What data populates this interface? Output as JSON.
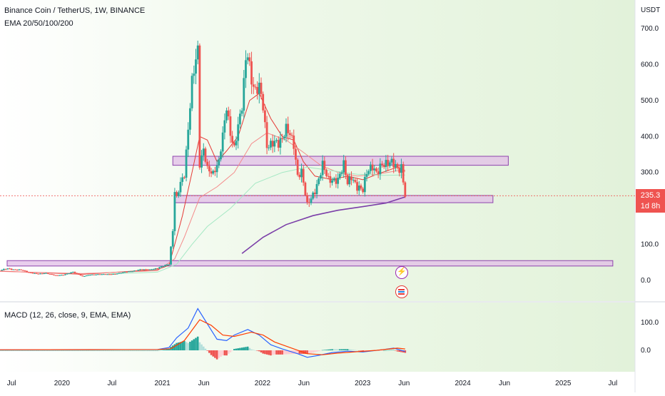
{
  "header": {
    "symbol": "Binance Coin / TetherUS, 1W, BINANCE",
    "indicator": "EMA 20/50/100/200",
    "macd_label": "MACD (12, 26, close, 9, EMA, EMA)"
  },
  "price_axis": {
    "currency": "USDT",
    "last_price": "235.3",
    "countdown": "1d 8h"
  },
  "colors": {
    "up": "#26a69a",
    "down": "#ef5350",
    "ema20": "#e53935",
    "ema50": "#f48a8a",
    "ema100": "#a5e8c4",
    "ema200": "#7b3fa8",
    "zone_fill": "#e1bee7",
    "zone_stroke": "#8e44ad",
    "macd": "#2962ff",
    "signal": "#ff3d00",
    "bg": "#e8f5e1"
  },
  "chart_data": [
    {
      "type": "candlestick",
      "title": "Binance Coin / TetherUS, 1W, BINANCE",
      "ylabel": "USDT",
      "ylim": [
        -30,
        740
      ],
      "xlim": [
        "2019-05-20",
        "2025-09-20"
      ],
      "y_ticks": [
        0,
        100,
        200,
        300,
        400,
        500,
        600,
        700
      ],
      "y_tick_labels": [
        "0.0",
        "100.0",
        "",
        "300.0",
        "400.0",
        "500.0",
        "600.0",
        "700.0"
      ],
      "x_tick_labels": [
        {
          "date": "2019-07-01",
          "label": "Jul"
        },
        {
          "date": "2020-01-01",
          "label": "2020"
        },
        {
          "date": "2020-07-01",
          "label": "Jul"
        },
        {
          "date": "2021-01-01",
          "label": "2021"
        },
        {
          "date": "2021-06-01",
          "label": "Jun"
        },
        {
          "date": "2022-01-01",
          "label": "2022"
        },
        {
          "date": "2022-06-01",
          "label": "Jun"
        },
        {
          "date": "2023-01-01",
          "label": "2023"
        },
        {
          "date": "2023-06-01",
          "label": "Jun"
        },
        {
          "date": "2024-01-01",
          "label": "2024"
        },
        {
          "date": "2024-06-01",
          "label": "Jun"
        },
        {
          "date": "2025-01-01",
          "label": "2025"
        },
        {
          "date": "2025-07-01",
          "label": "Jul"
        }
      ],
      "close_path": [
        [
          "2019-05-20",
          28
        ],
        [
          "2019-06-17",
          33
        ],
        [
          "2019-07-08",
          30
        ],
        [
          "2019-08-05",
          29
        ],
        [
          "2019-09-02",
          22
        ],
        [
          "2019-10-07",
          18
        ],
        [
          "2019-11-04",
          20
        ],
        [
          "2019-12-09",
          14
        ],
        [
          "2020-01-06",
          15
        ],
        [
          "2020-02-10",
          24
        ],
        [
          "2020-03-16",
          11
        ],
        [
          "2020-04-13",
          16
        ],
        [
          "2020-05-18",
          17
        ],
        [
          "2020-06-15",
          17
        ],
        [
          "2020-07-13",
          18
        ],
        [
          "2020-08-17",
          23
        ],
        [
          "2020-09-14",
          26
        ],
        [
          "2020-10-12",
          30
        ],
        [
          "2020-11-16",
          30
        ],
        [
          "2020-12-14",
          34
        ],
        [
          "2021-01-04",
          40
        ],
        [
          "2021-01-25",
          45
        ],
        [
          "2021-02-08",
          140
        ],
        [
          "2021-02-15",
          250
        ],
        [
          "2021-02-22",
          230
        ],
        [
          "2021-03-08",
          270
        ],
        [
          "2021-03-22",
          290
        ],
        [
          "2021-04-05",
          420
        ],
        [
          "2021-04-19",
          560
        ],
        [
          "2021-05-03",
          620
        ],
        [
          "2021-05-10",
          640
        ],
        [
          "2021-05-17",
          320
        ],
        [
          "2021-05-31",
          360
        ],
        [
          "2021-06-14",
          310
        ],
        [
          "2021-07-05",
          300
        ],
        [
          "2021-07-26",
          330
        ],
        [
          "2021-08-09",
          400
        ],
        [
          "2021-08-23",
          480
        ],
        [
          "2021-09-06",
          410
        ],
        [
          "2021-09-20",
          370
        ],
        [
          "2021-10-04",
          430
        ],
        [
          "2021-10-18",
          480
        ],
        [
          "2021-11-01",
          610
        ],
        [
          "2021-11-08",
          630
        ],
        [
          "2021-11-22",
          560
        ],
        [
          "2021-12-06",
          530
        ],
        [
          "2021-12-20",
          540
        ],
        [
          "2022-01-03",
          480
        ],
        [
          "2022-01-17",
          370
        ],
        [
          "2022-01-31",
          380
        ],
        [
          "2022-02-14",
          390
        ],
        [
          "2022-02-28",
          380
        ],
        [
          "2022-03-14",
          390
        ],
        [
          "2022-03-28",
          420
        ],
        [
          "2022-04-11",
          410
        ],
        [
          "2022-04-25",
          380
        ],
        [
          "2022-05-09",
          290
        ],
        [
          "2022-05-23",
          300
        ],
        [
          "2022-06-13",
          210
        ],
        [
          "2022-06-27",
          230
        ],
        [
          "2022-07-11",
          250
        ],
        [
          "2022-07-25",
          280
        ],
        [
          "2022-08-08",
          320
        ],
        [
          "2022-08-29",
          280
        ],
        [
          "2022-09-12",
          280
        ],
        [
          "2022-10-03",
          280
        ],
        [
          "2022-10-24",
          320
        ],
        [
          "2022-11-07",
          270
        ],
        [
          "2022-11-21",
          290
        ],
        [
          "2022-12-12",
          260
        ],
        [
          "2023-01-02",
          250
        ],
        [
          "2023-01-16",
          300
        ],
        [
          "2023-02-06",
          320
        ],
        [
          "2023-02-20",
          300
        ],
        [
          "2023-03-13",
          320
        ],
        [
          "2023-03-27",
          320
        ],
        [
          "2023-04-10",
          330
        ],
        [
          "2023-04-24",
          330
        ],
        [
          "2023-05-08",
          310
        ],
        [
          "2023-05-22",
          310
        ],
        [
          "2023-06-05",
          235.3
        ]
      ],
      "ema_series": [
        {
          "name": "EMA 20",
          "points": [
            [
              "2019-05-20",
              26
            ],
            [
              "2020-03-16",
              17
            ],
            [
              "2020-12-14",
              30
            ],
            [
              "2021-01-25",
              42
            ],
            [
              "2021-02-15",
              100
            ],
            [
              "2021-03-15",
              180
            ],
            [
              "2021-04-19",
              300
            ],
            [
              "2021-05-17",
              400
            ],
            [
              "2021-06-14",
              390
            ],
            [
              "2021-07-19",
              330
            ],
            [
              "2021-08-23",
              360
            ],
            [
              "2021-10-04",
              400
            ],
            [
              "2021-11-15",
              500
            ],
            [
              "2021-12-20",
              520
            ],
            [
              "2022-01-31",
              450
            ],
            [
              "2022-03-14",
              400
            ],
            [
              "2022-04-25",
              390
            ],
            [
              "2022-05-30",
              330
            ],
            [
              "2022-07-11",
              290
            ],
            [
              "2022-09-12",
              280
            ],
            [
              "2022-11-07",
              290
            ],
            [
              "2023-01-02",
              280
            ],
            [
              "2023-03-13",
              300
            ],
            [
              "2023-05-08",
              315
            ],
            [
              "2023-06-05",
              305
            ]
          ]
        },
        {
          "name": "EMA 50",
          "points": [
            [
              "2019-05-20",
              25
            ],
            [
              "2020-03-16",
              19
            ],
            [
              "2020-12-14",
              27
            ],
            [
              "2021-02-15",
              60
            ],
            [
              "2021-03-22",
              120
            ],
            [
              "2021-05-17",
              230
            ],
            [
              "2021-07-19",
              260
            ],
            [
              "2021-09-20",
              300
            ],
            [
              "2021-11-22",
              380
            ],
            [
              "2022-01-17",
              410
            ],
            [
              "2022-03-28",
              390
            ],
            [
              "2022-05-23",
              360
            ],
            [
              "2022-08-01",
              320
            ],
            [
              "2022-10-03",
              300
            ],
            [
              "2022-12-12",
              290
            ],
            [
              "2023-02-20",
              295
            ],
            [
              "2023-05-08",
              305
            ],
            [
              "2023-06-05",
              302
            ]
          ]
        },
        {
          "name": "EMA 100",
          "points": [
            [
              "2020-06-15",
              18
            ],
            [
              "2020-12-14",
              23
            ],
            [
              "2021-02-22",
              45
            ],
            [
              "2021-04-19",
              100
            ],
            [
              "2021-06-14",
              150
            ],
            [
              "2021-09-06",
              200
            ],
            [
              "2021-12-06",
              270
            ],
            [
              "2022-03-14",
              300
            ],
            [
              "2022-06-13",
              315
            ],
            [
              "2022-09-12",
              305
            ],
            [
              "2022-12-12",
              295
            ],
            [
              "2023-03-13",
              292
            ],
            [
              "2023-06-05",
              293
            ]
          ]
        },
        {
          "name": "EMA 200",
          "points": [
            [
              "2021-10-18",
              75
            ],
            [
              "2022-01-03",
              120
            ],
            [
              "2022-03-28",
              155
            ],
            [
              "2022-07-04",
              180
            ],
            [
              "2022-10-03",
              195
            ],
            [
              "2023-01-02",
              205
            ],
            [
              "2023-03-27",
              215
            ],
            [
              "2023-06-05",
              232
            ]
          ]
        }
      ],
      "zones": [
        {
          "from": "2021-02-08",
          "to": "2024-06-15",
          "low": 320,
          "high": 345
        },
        {
          "from": "2021-02-15",
          "to": "2024-04-20",
          "low": 216,
          "high": 236
        },
        {
          "from": "2019-06-15",
          "to": "2025-07-01",
          "low": 40,
          "high": 55
        }
      ]
    },
    {
      "type": "line",
      "title": "MACD (12, 26, close, 9, EMA, EMA)",
      "ylim": [
        -40,
        175
      ],
      "y_ticks": [
        0,
        100
      ],
      "y_tick_labels": [
        "0.0",
        "100.0"
      ],
      "series": [
        {
          "name": "MACD",
          "points": [
            [
              "2019-05-20",
              2
            ],
            [
              "2020-12-14",
              3
            ],
            [
              "2021-01-25",
              10
            ],
            [
              "2021-02-22",
              45
            ],
            [
              "2021-04-05",
              80
            ],
            [
              "2021-05-10",
              150
            ],
            [
              "2021-06-14",
              95
            ],
            [
              "2021-07-19",
              40
            ],
            [
              "2021-08-23",
              35
            ],
            [
              "2021-09-20",
              55
            ],
            [
              "2021-11-08",
              75
            ],
            [
              "2021-12-20",
              55
            ],
            [
              "2022-01-31",
              20
            ],
            [
              "2022-03-14",
              5
            ],
            [
              "2022-05-09",
              -12
            ],
            [
              "2022-06-13",
              -25
            ],
            [
              "2022-07-25",
              -18
            ],
            [
              "2022-09-12",
              -8
            ],
            [
              "2022-11-07",
              -3
            ],
            [
              "2023-01-02",
              -6
            ],
            [
              "2023-03-13",
              2
            ],
            [
              "2023-04-24",
              8
            ],
            [
              "2023-06-05",
              -4
            ]
          ]
        },
        {
          "name": "Signal",
          "points": [
            [
              "2019-05-20",
              2
            ],
            [
              "2020-12-14",
              3
            ],
            [
              "2021-02-01",
              6
            ],
            [
              "2021-03-22",
              35
            ],
            [
              "2021-05-17",
              110
            ],
            [
              "2021-06-28",
              90
            ],
            [
              "2021-08-09",
              55
            ],
            [
              "2021-09-20",
              50
            ],
            [
              "2021-11-22",
              65
            ],
            [
              "2022-01-03",
              55
            ],
            [
              "2022-02-14",
              30
            ],
            [
              "2022-04-11",
              10
            ],
            [
              "2022-06-13",
              -12
            ],
            [
              "2022-08-08",
              -16
            ],
            [
              "2022-10-03",
              -10
            ],
            [
              "2022-12-12",
              -5
            ],
            [
              "2023-02-20",
              0
            ],
            [
              "2023-05-08",
              8
            ],
            [
              "2023-06-05",
              5
            ]
          ]
        }
      ],
      "histogram": "MACD minus Signal"
    }
  ]
}
